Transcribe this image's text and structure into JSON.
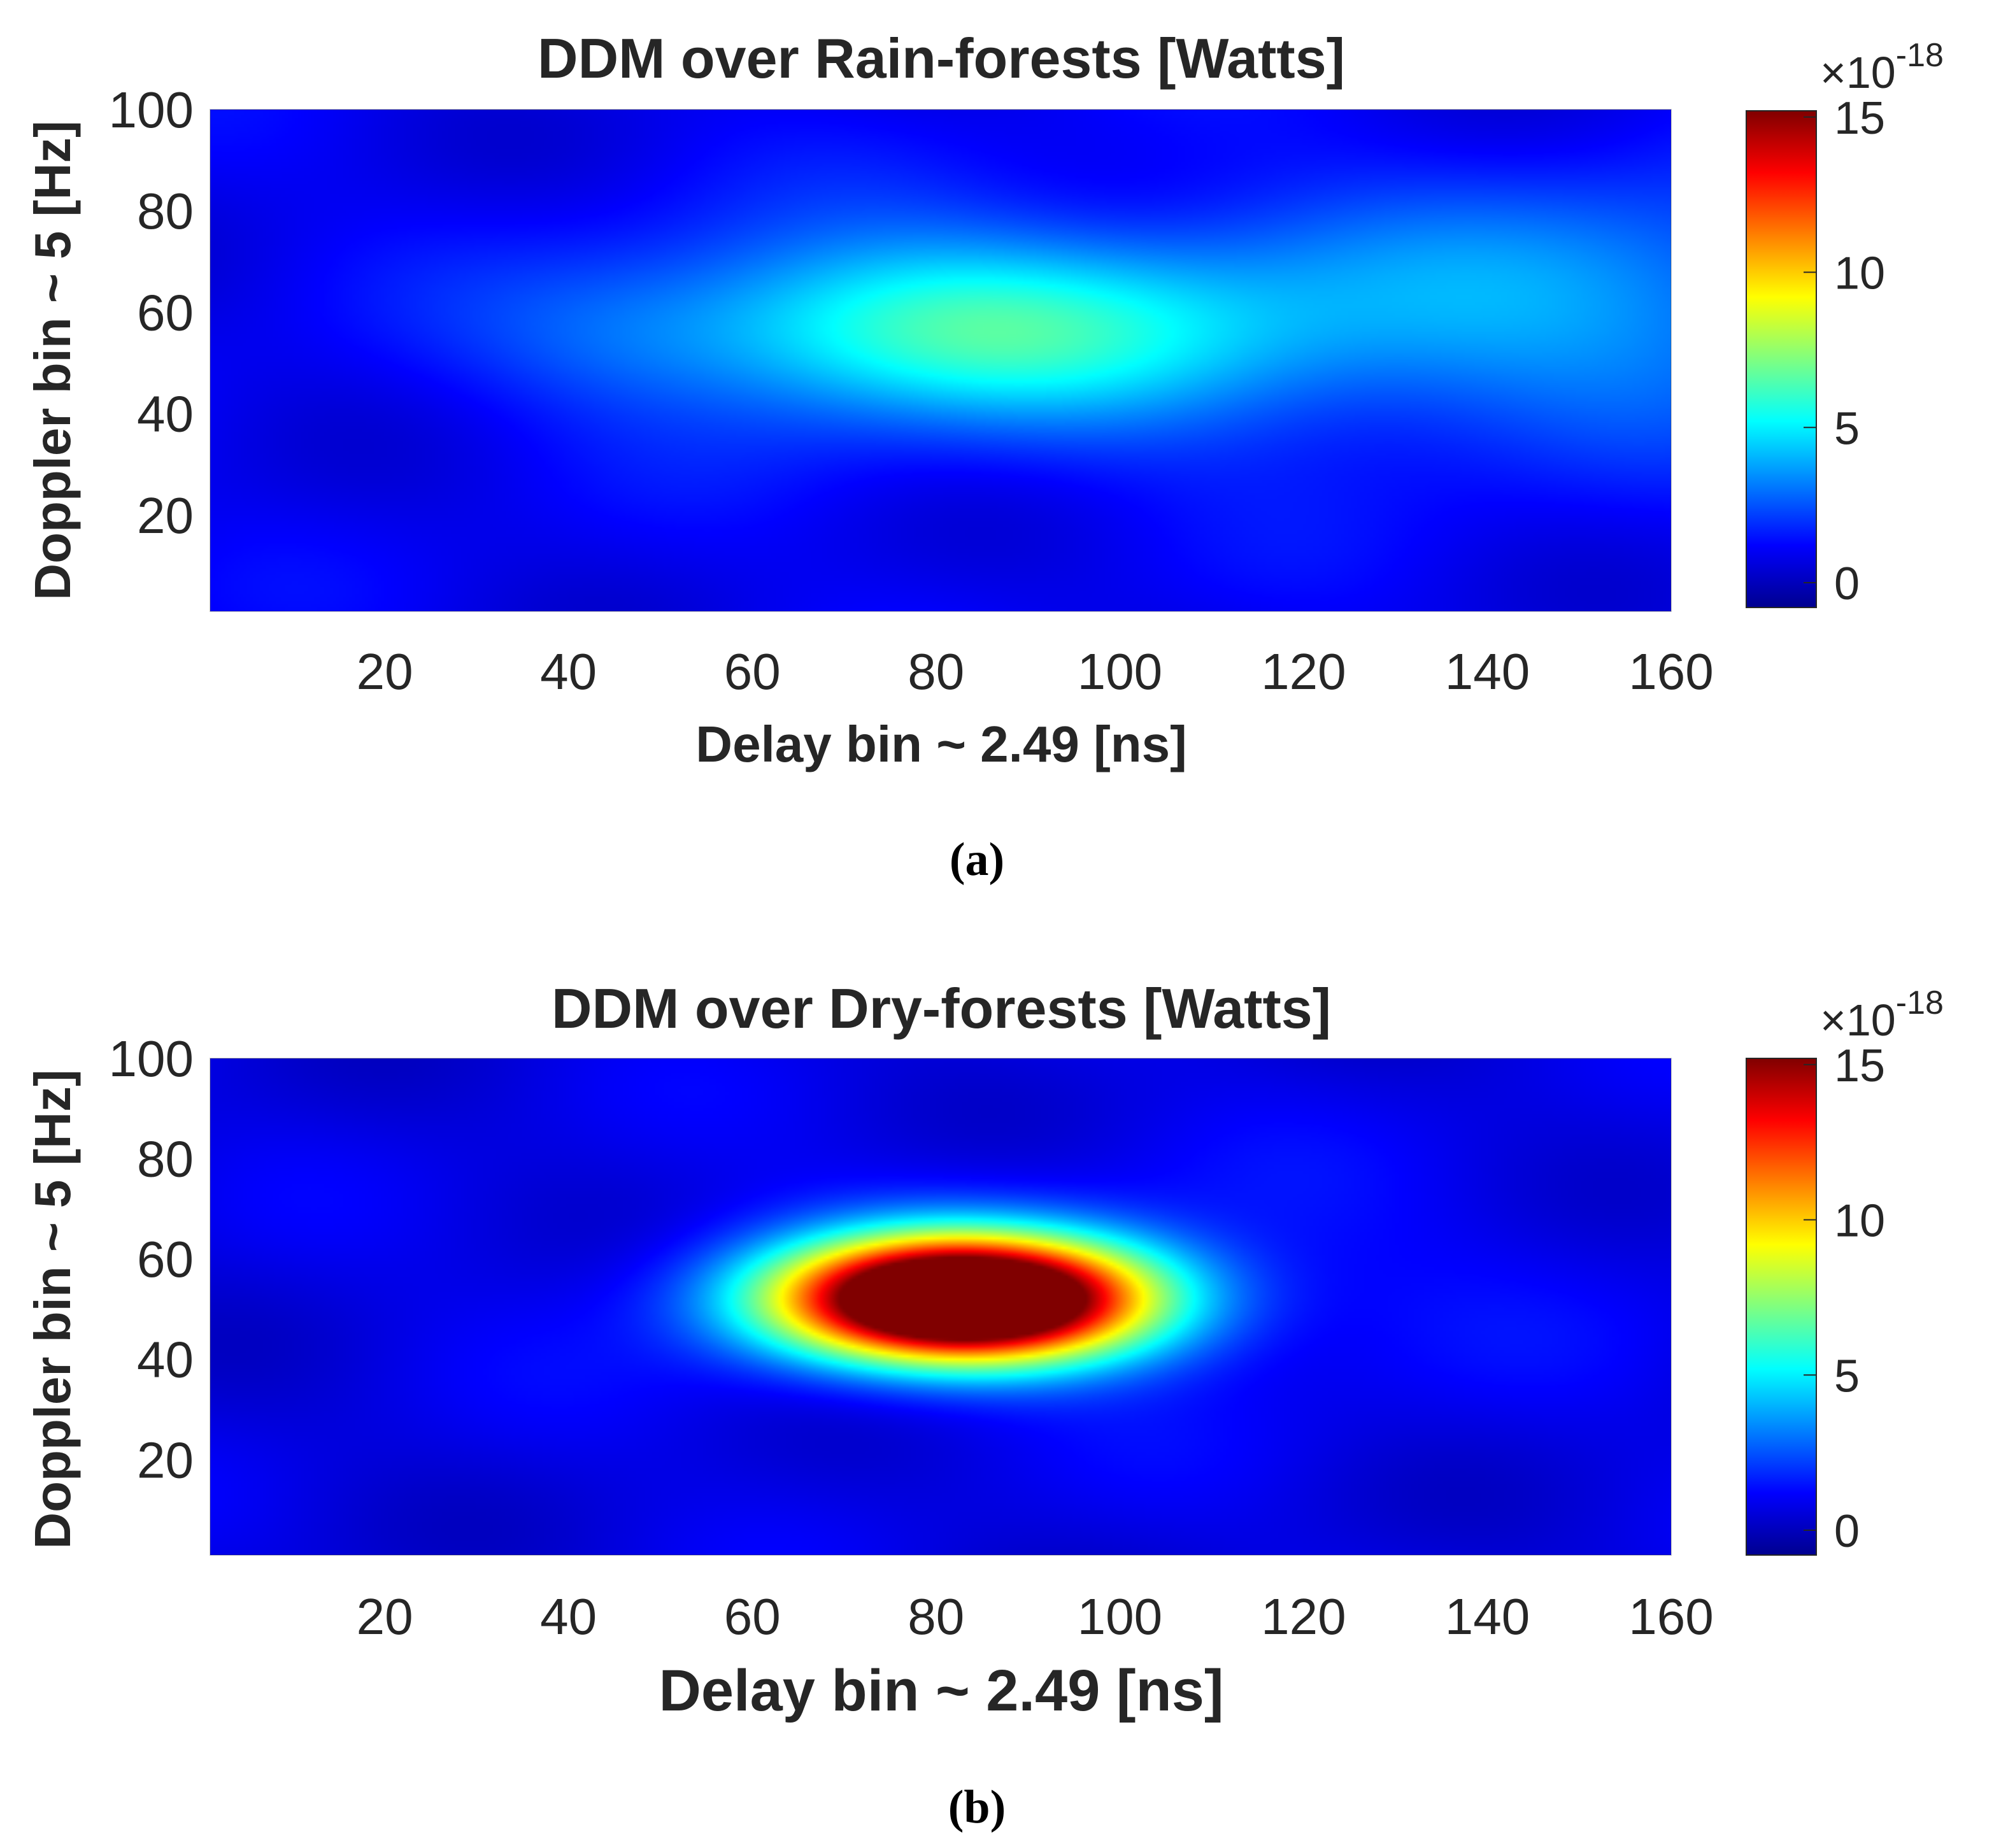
{
  "chart_data": [
    {
      "type": "heatmap",
      "panel_label": "(a)",
      "title": "DDM over Rain-forests [Watts]",
      "xlabel": "Delay bin ~ 2.49 [ns]",
      "ylabel": "Doppler bin ~ 5 [Hz]",
      "xlim": [
        1,
        160
      ],
      "ylim": [
        1,
        100
      ],
      "xticks": [
        20,
        40,
        60,
        80,
        100,
        120,
        140,
        160
      ],
      "yticks": [
        20,
        40,
        60,
        80,
        100
      ],
      "colormap": "jet",
      "colorbar": {
        "clim": [
          -0.8,
          15.2
        ],
        "ticks": [
          0,
          5,
          10,
          15
        ],
        "exponent_prefix": "×10",
        "exponent": "-18"
      },
      "background_level": 0.9,
      "noise_amplitude": 0.5,
      "features": [
        {
          "cx": 80,
          "cy": 57,
          "sx": 22,
          "sy": 12,
          "amp": 3.9
        },
        {
          "cx": 125,
          "cy": 57,
          "sx": 45,
          "sy": 18,
          "amp": 2.4
        },
        {
          "cx": 155,
          "cy": 68,
          "sx": 18,
          "sy": 15,
          "amp": 1.0
        },
        {
          "cx": 45,
          "cy": 55,
          "sx": 12,
          "sy": 10,
          "amp": 0.7
        }
      ]
    },
    {
      "type": "heatmap",
      "panel_label": "(b)",
      "title": "DDM over Dry-forests [Watts]",
      "xlabel": "Delay bin ~ 2.49 [ns]",
      "ylabel": "Doppler bin ~ 5 [Hz]",
      "xlim": [
        1,
        160
      ],
      "ylim": [
        1,
        100
      ],
      "xticks": [
        20,
        40,
        60,
        80,
        100,
        120,
        140,
        160
      ],
      "yticks": [
        20,
        40,
        60,
        80,
        100
      ],
      "colormap": "jet",
      "colorbar": {
        "clim": [
          -0.8,
          15.2
        ],
        "ticks": [
          0,
          5,
          10,
          15
        ],
        "exponent_prefix": "×10",
        "exponent": "-18"
      },
      "background_level": 0.7,
      "noise_amplitude": 0.5,
      "features": [
        {
          "cx": 83,
          "cy": 52,
          "sx": 14,
          "sy": 8.5,
          "amp": 22
        },
        {
          "cx": 100,
          "cy": 55,
          "sx": 40,
          "sy": 20,
          "amp": 0.6
        }
      ]
    }
  ]
}
